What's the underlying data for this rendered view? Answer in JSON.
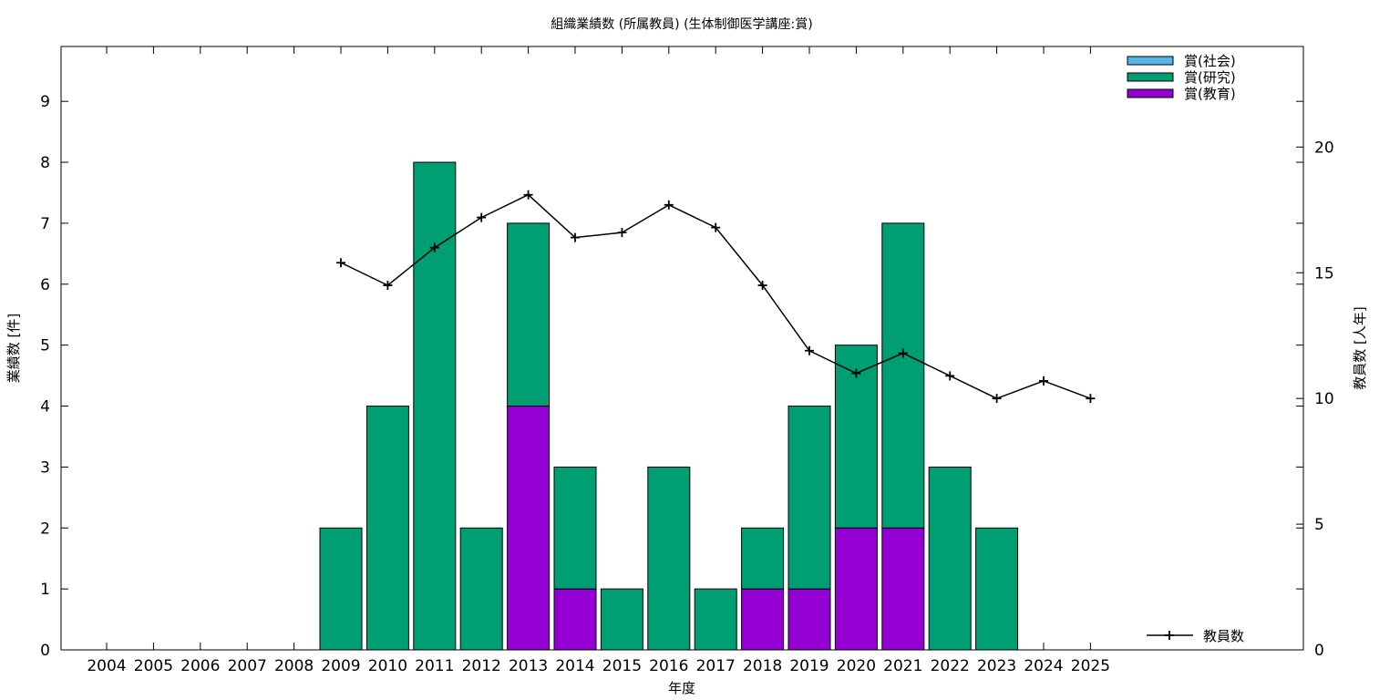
{
  "chart_data": {
    "type": "bar",
    "title": "組織業績数 (所属教員) (生体制御医学講座:賞)",
    "xlabel": "年度",
    "ylabel": "業績数 [件]",
    "y2label": "教員数 [人年]",
    "categories": [
      "2004",
      "2005",
      "2006",
      "2007",
      "2008",
      "2009",
      "2010",
      "2011",
      "2012",
      "2013",
      "2014",
      "2015",
      "2016",
      "2017",
      "2018",
      "2019",
      "2020",
      "2021",
      "2022",
      "2023",
      "2024",
      "2025"
    ],
    "ylim": [
      0,
      9.9
    ],
    "y2lim": [
      0,
      24
    ],
    "yticks": [
      0,
      1,
      2,
      3,
      4,
      5,
      6,
      7,
      8,
      9
    ],
    "y2ticks": [
      0,
      5,
      10,
      15,
      20
    ],
    "stacked": true,
    "legend_position": "top-right",
    "series": [
      {
        "name": "賞(社会)",
        "color": "#56b4e9",
        "values": [
          0,
          0,
          0,
          0,
          0,
          0,
          0,
          0,
          0,
          0,
          0,
          0,
          0,
          0,
          0,
          0,
          0,
          0,
          0,
          0,
          0,
          0
        ]
      },
      {
        "name": "賞(研究)",
        "color": "#009e73",
        "values": [
          0,
          0,
          0,
          0,
          0,
          2,
          4,
          8,
          2,
          3,
          2,
          1,
          3,
          1,
          1,
          3,
          3,
          5,
          3,
          2,
          0,
          0
        ]
      },
      {
        "name": "賞(教育)",
        "color": "#9400d3",
        "values": [
          0,
          0,
          0,
          0,
          0,
          0,
          0,
          0,
          0,
          4,
          1,
          0,
          0,
          0,
          1,
          1,
          2,
          2,
          0,
          0,
          0,
          0
        ]
      }
    ],
    "line_series": {
      "name": "教員数",
      "axis": "y2",
      "color": "#000000",
      "values": [
        null,
        null,
        null,
        null,
        null,
        15.4,
        14.5,
        16.0,
        17.2,
        18.1,
        16.4,
        16.6,
        17.7,
        16.8,
        14.5,
        11.9,
        11.0,
        11.8,
        10.9,
        10.0,
        10.7,
        10.0
      ]
    }
  }
}
